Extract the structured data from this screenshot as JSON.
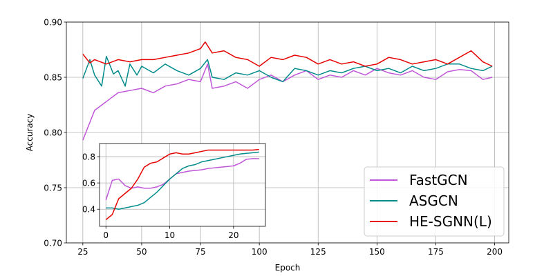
{
  "chart_data": [
    {
      "type": "line",
      "role": "main",
      "xlabel": "Epoch",
      "ylabel": "Accuracy",
      "xlim": [
        18,
        206
      ],
      "ylim": [
        0.7,
        0.9
      ],
      "xticks": [
        25,
        50,
        75,
        100,
        125,
        150,
        175,
        200
      ],
      "yticks": [
        0.7,
        0.75,
        0.8,
        0.85,
        0.9
      ],
      "xtick_labels": [
        "25",
        "50",
        "75",
        "100",
        "125",
        "150",
        "175",
        "200"
      ],
      "ytick_labels": [
        "0.70",
        "0.75",
        "0.80",
        "0.85",
        "0.90"
      ],
      "grid": true,
      "legend_position": "bottom-right",
      "series": [
        {
          "name": "FastGCN",
          "color": "#bf55d8",
          "x": [
            25,
            30,
            35,
            40,
            45,
            50,
            55,
            60,
            65,
            70,
            75,
            78,
            80,
            85,
            90,
            95,
            100,
            105,
            110,
            115,
            120,
            125,
            130,
            135,
            140,
            145,
            150,
            155,
            160,
            165,
            170,
            175,
            180,
            185,
            190,
            195,
            199
          ],
          "values": [
            0.793,
            0.82,
            0.828,
            0.836,
            0.838,
            0.84,
            0.836,
            0.842,
            0.844,
            0.848,
            0.846,
            0.862,
            0.84,
            0.842,
            0.846,
            0.84,
            0.848,
            0.852,
            0.846,
            0.852,
            0.856,
            0.848,
            0.852,
            0.85,
            0.856,
            0.852,
            0.858,
            0.854,
            0.852,
            0.856,
            0.85,
            0.848,
            0.855,
            0.857,
            0.856,
            0.848,
            0.85
          ]
        },
        {
          "name": "ASGCN",
          "color": "#008b8b",
          "x": [
            25,
            28,
            30,
            33,
            35,
            38,
            40,
            43,
            45,
            48,
            50,
            55,
            60,
            65,
            70,
            75,
            78,
            80,
            85,
            90,
            95,
            100,
            105,
            110,
            115,
            120,
            125,
            130,
            135,
            140,
            145,
            150,
            155,
            160,
            165,
            170,
            175,
            180,
            185,
            190,
            195,
            199
          ],
          "values": [
            0.849,
            0.866,
            0.852,
            0.842,
            0.869,
            0.853,
            0.856,
            0.842,
            0.862,
            0.852,
            0.86,
            0.854,
            0.862,
            0.856,
            0.852,
            0.858,
            0.866,
            0.85,
            0.848,
            0.854,
            0.852,
            0.856,
            0.85,
            0.846,
            0.858,
            0.856,
            0.852,
            0.856,
            0.854,
            0.858,
            0.86,
            0.856,
            0.858,
            0.854,
            0.86,
            0.856,
            0.858,
            0.862,
            0.862,
            0.858,
            0.856,
            0.86
          ]
        },
        {
          "name": "HE-SGNN(L)",
          "color": "#e60000",
          "x": [
            25,
            28,
            30,
            35,
            40,
            45,
            50,
            55,
            60,
            65,
            70,
            75,
            77,
            80,
            85,
            90,
            95,
            100,
            105,
            110,
            115,
            120,
            125,
            130,
            135,
            140,
            145,
            150,
            155,
            160,
            165,
            170,
            175,
            180,
            185,
            190,
            195,
            199
          ],
          "values": [
            0.871,
            0.863,
            0.866,
            0.862,
            0.866,
            0.864,
            0.866,
            0.866,
            0.868,
            0.87,
            0.872,
            0.876,
            0.882,
            0.872,
            0.874,
            0.868,
            0.866,
            0.86,
            0.868,
            0.866,
            0.87,
            0.868,
            0.862,
            0.866,
            0.862,
            0.864,
            0.86,
            0.862,
            0.868,
            0.866,
            0.862,
            0.864,
            0.866,
            0.862,
            0.868,
            0.874,
            0.864,
            0.86
          ]
        }
      ]
    },
    {
      "type": "line",
      "role": "inset",
      "xlim": [
        -1,
        25
      ],
      "ylim": [
        0.27,
        0.9
      ],
      "xticks": [
        0,
        10,
        20
      ],
      "yticks": [
        0.4,
        0.6,
        0.8
      ],
      "xtick_labels": [
        "0",
        "10",
        "20"
      ],
      "ytick_labels": [
        "0.4",
        "0.6",
        "0.8"
      ],
      "grid": true,
      "series": [
        {
          "name": "FastGCN",
          "color": "#bf55d8",
          "x": [
            0,
            1,
            2,
            3,
            4,
            5,
            6,
            7,
            8,
            9,
            10,
            11,
            12,
            13,
            14,
            15,
            16,
            17,
            18,
            19,
            20,
            21,
            22,
            23,
            24
          ],
          "values": [
            0.47,
            0.62,
            0.63,
            0.58,
            0.56,
            0.57,
            0.56,
            0.56,
            0.57,
            0.59,
            0.63,
            0.67,
            0.68,
            0.69,
            0.695,
            0.7,
            0.71,
            0.715,
            0.72,
            0.725,
            0.73,
            0.75,
            0.78,
            0.785,
            0.785
          ]
        },
        {
          "name": "ASGCN",
          "color": "#008b8b",
          "x": [
            0,
            1,
            2,
            3,
            4,
            5,
            6,
            7,
            8,
            9,
            10,
            11,
            12,
            13,
            14,
            15,
            16,
            17,
            18,
            19,
            20,
            21,
            22,
            23,
            24
          ],
          "values": [
            0.41,
            0.41,
            0.4,
            0.41,
            0.42,
            0.43,
            0.45,
            0.49,
            0.53,
            0.58,
            0.63,
            0.67,
            0.71,
            0.73,
            0.74,
            0.76,
            0.77,
            0.78,
            0.79,
            0.8,
            0.81,
            0.82,
            0.825,
            0.83,
            0.835
          ]
        },
        {
          "name": "HE-SGNN(L)",
          "color": "#e60000",
          "x": [
            0,
            1,
            2,
            3,
            4,
            5,
            6,
            7,
            8,
            9,
            10,
            11,
            12,
            13,
            14,
            15,
            16,
            17,
            18,
            19,
            20,
            21,
            22,
            23,
            24
          ],
          "values": [
            0.32,
            0.36,
            0.48,
            0.52,
            0.56,
            0.63,
            0.72,
            0.75,
            0.76,
            0.79,
            0.82,
            0.83,
            0.82,
            0.82,
            0.83,
            0.84,
            0.85,
            0.85,
            0.85,
            0.85,
            0.85,
            0.85,
            0.85,
            0.85,
            0.855
          ]
        }
      ]
    }
  ]
}
